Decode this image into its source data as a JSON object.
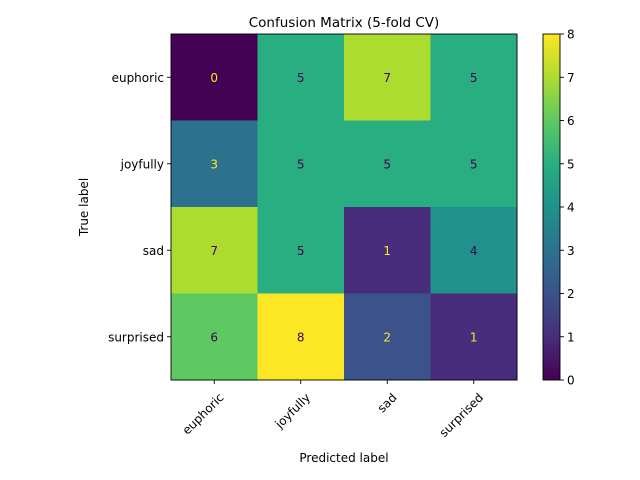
{
  "chart_data": {
    "type": "heatmap",
    "title": "Confusion Matrix (5-fold CV)",
    "xlabel": "Predicted label",
    "ylabel": "True label",
    "x_categories": [
      "euphoric",
      "joyfully",
      "sad",
      "surprised"
    ],
    "y_categories": [
      "euphoric",
      "joyfully",
      "sad",
      "surprised"
    ],
    "values": [
      [
        0,
        5,
        7,
        5
      ],
      [
        3,
        5,
        5,
        5
      ],
      [
        7,
        5,
        1,
        4
      ],
      [
        6,
        8,
        2,
        1
      ]
    ],
    "colormap": "viridis",
    "colorbar": {
      "min": 0,
      "max": 8,
      "ticks": [
        0,
        1,
        2,
        3,
        4,
        5,
        6,
        7,
        8
      ]
    },
    "x_tick_rotation": 45,
    "grid": false
  }
}
